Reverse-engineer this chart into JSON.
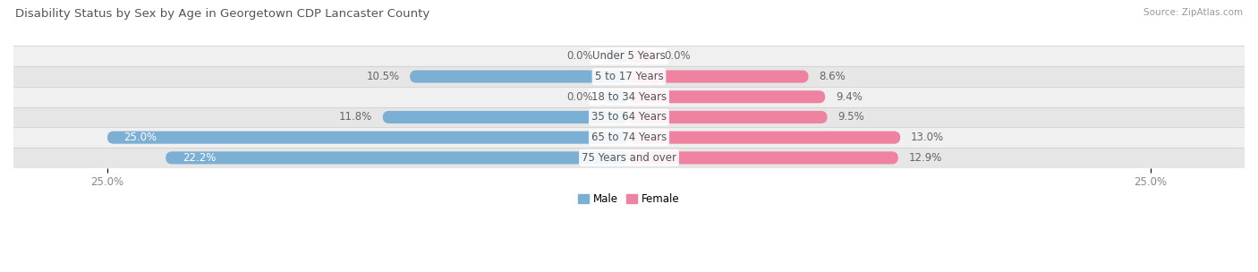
{
  "title": "Disability Status by Sex by Age in Georgetown CDP Lancaster County",
  "source": "Source: ZipAtlas.com",
  "categories": [
    "Under 5 Years",
    "5 to 17 Years",
    "18 to 34 Years",
    "35 to 64 Years",
    "65 to 74 Years",
    "75 Years and over"
  ],
  "male_values": [
    0.0,
    10.5,
    0.0,
    11.8,
    25.0,
    22.2
  ],
  "female_values": [
    0.0,
    8.6,
    9.4,
    9.5,
    13.0,
    12.9
  ],
  "max_value": 25.0,
  "male_color": "#7bafd4",
  "female_color": "#ee82a0",
  "male_label": "Male",
  "female_label": "Female",
  "row_bg_colors": [
    "#f0f0f0",
    "#e6e6e6"
  ],
  "title_color": "#555555",
  "tick_label_color": "#888888",
  "fig_bg_color": "#ffffff",
  "bar_height": 0.62,
  "title_fontsize": 9.5,
  "label_fontsize": 8.5,
  "tick_fontsize": 8.5,
  "cat_fontsize": 8.5,
  "value_inside_color_male": "#ffffff",
  "value_inside_color_female": "#ffffff",
  "value_outside_color": "#666666"
}
